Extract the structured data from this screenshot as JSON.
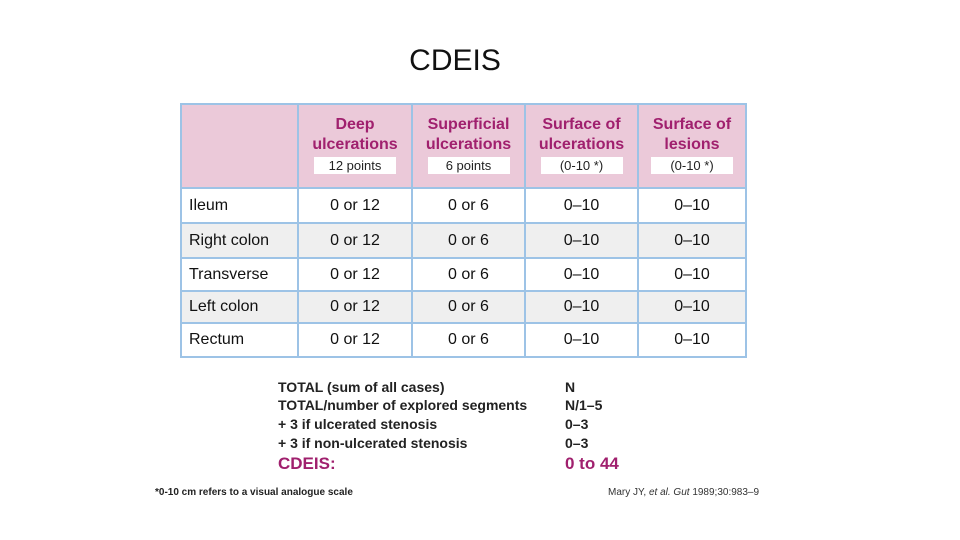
{
  "header": {
    "title": "CDEIS"
  },
  "table": {
    "columns": [
      {
        "title": "Deep ulcerations",
        "points": "12 points"
      },
      {
        "title": "Superficial ulcerations",
        "points": "6 points"
      },
      {
        "title": "Surface of ulcerations",
        "points": "(0-10 *)"
      },
      {
        "title": "Surface of lesions",
        "points": "(0-10 *)"
      }
    ],
    "rows": [
      [
        "Ileum",
        "0 or 12",
        "0 or 6",
        "0–10",
        "0–10"
      ],
      [
        "Right colon",
        "0 or 12",
        "0 or 6",
        "0–10",
        "0–10"
      ],
      [
        "Transverse",
        "0 or 12",
        "0 or 6",
        "0–10",
        "0–10"
      ],
      [
        "Left colon",
        "0 or 12",
        "0 or 6",
        "0–10",
        "0–10"
      ],
      [
        "Rectum",
        "0 or 12",
        "0 or 6",
        "0–10",
        "0–10"
      ]
    ]
  },
  "summary": {
    "rows": [
      [
        "TOTAL (sum of all cases)",
        "N"
      ],
      [
        "TOTAL/number of explored segments",
        "N/1–5"
      ],
      [
        "+ 3 if ulcerated stenosis",
        "0–3"
      ],
      [
        "+ 3 if non-ulcerated stenosis",
        "0–3"
      ]
    ],
    "total": [
      "CDEIS:",
      "0 to 44"
    ]
  },
  "footnote": "*0-10 cm refers to a visual analogue scale",
  "citation": {
    "authors": "Mary JY,",
    "journal": "et al. Gut",
    "reference": "1989;30:983–9"
  }
}
